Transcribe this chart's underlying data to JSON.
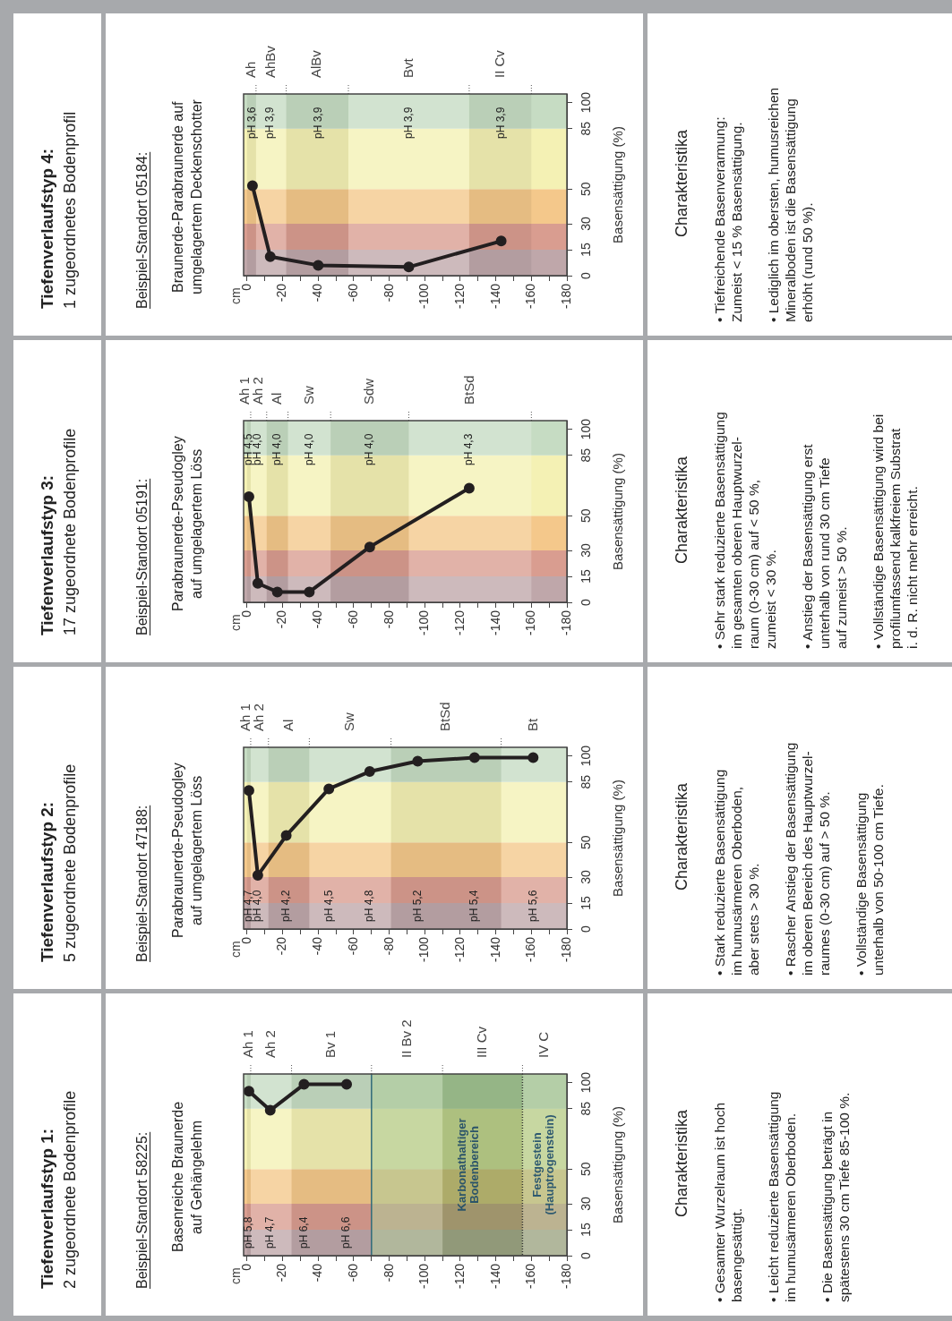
{
  "chart_data": [
    {
      "type": "line",
      "ylabel": "Basensättigung (%)",
      "series": [
        {
          "color": "#231f20",
          "x": [
            -1,
            -13,
            -32,
            -56
          ],
          "values": [
            95,
            84,
            99,
            99
          ]
        }
      ],
      "marker": "circle",
      "xlim": [
        2,
        -180
      ],
      "ylim": [
        0,
        105
      ],
      "yticks": [
        0,
        15,
        30,
        50,
        85,
        100
      ],
      "xticks": [
        0,
        {
          "value": -10,
          "label": null
        },
        -20,
        {
          "value": -30,
          "label": null
        },
        -40,
        {
          "value": -50,
          "label": null
        },
        -60,
        {
          "value": -70,
          "label": null
        },
        -80,
        {
          "value": -90,
          "label": null
        },
        -100,
        {
          "value": -110,
          "label": null
        },
        -120,
        {
          "value": -130,
          "label": null
        },
        -140,
        {
          "value": -150,
          "label": null
        },
        -160,
        {
          "value": -170,
          "label": null
        },
        -180
      ],
      "grid": false,
      "bands": [
        {
          "axis": "y",
          "from": 0,
          "to": 15,
          "color": "#bfa7aa"
        },
        {
          "axis": "y",
          "from": 15,
          "to": 30,
          "color": "#d99d90"
        },
        {
          "axis": "y",
          "from": 30,
          "to": 50,
          "color": "#f4c88b"
        },
        {
          "axis": "y",
          "from": 50,
          "to": 85,
          "color": "#f4f1b4"
        },
        {
          "axis": "y",
          "from": 85,
          "to": 105,
          "color": "#c6dcc3"
        },
        {
          "axis": "x",
          "from": -70,
          "to": -180,
          "label": "Karbonathaltiger\nBodenbereich",
          "color": "#6f9f4f"
        },
        {
          "axis": "x",
          "from": 0,
          "to": -2,
          "label": "Ah 1"
        },
        {
          "axis": "x",
          "from": -2,
          "to": -25,
          "label": "Ah 2"
        },
        {
          "axis": "x",
          "from": -25,
          "to": -70,
          "label": "Bv 1"
        },
        {
          "axis": "x",
          "from": -70,
          "to": -110,
          "label": "II Bv 2"
        },
        {
          "axis": "x",
          "from": -110,
          "to": -155,
          "label": "III Cv"
        },
        {
          "axis": "x",
          "from": -155,
          "to": -180,
          "label": "IV C"
        }
      ],
      "ref_lines": [
        {
          "axis": "x",
          "value": -70,
          "color": "#2f6a7a",
          "line_style": "solid"
        },
        {
          "axis": "x",
          "value": -155,
          "color": "#333333",
          "line_style": "dotted"
        }
      ],
      "annotations": [
        "Tiefenverlaufstyp 1:",
        "2 zugeordnete Bodenprofile",
        "Beispiel-Standort 58225:",
        "Basenreiche Braunerde\nauf Gehängelehm",
        "cm",
        "Charakteristika",
        "• Gesamter Wurzelraum ist hoch\nbasengesättigt.",
        "• Leicht reduzierte Basensättigung\nim humusärmeren Oberboden.",
        "• Die Basensättigung beträgt in\nspätestens 30 cm Tiefe 85-100 %.",
        "pH 5,8",
        "pH 4,7",
        "pH 6,4",
        "pH 6,6",
        {
          "text": "Festgestein\n(Hauptrogenstein)",
          "x": -155
        }
      ]
    },
    {
      "type": "line",
      "ylabel": "Basensättigung (%)",
      "series": [
        {
          "color": "#231f20",
          "x": [
            -1,
            -6,
            -22,
            -46,
            -69,
            -96,
            -128,
            -161
          ],
          "values": [
            80,
            31,
            54,
            81,
            91,
            97,
            99,
            99
          ]
        }
      ],
      "marker": "circle",
      "xlim": [
        2,
        -180
      ],
      "ylim": [
        0,
        105
      ],
      "yticks": [
        0,
        15,
        30,
        50,
        85,
        100
      ],
      "xticks": [
        0,
        {
          "value": -10,
          "label": null
        },
        -20,
        {
          "value": -30,
          "label": null
        },
        -40,
        {
          "value": -50,
          "label": null
        },
        -60,
        {
          "value": -70,
          "label": null
        },
        -80,
        {
          "value": -90,
          "label": null
        },
        -100,
        {
          "value": -110,
          "label": null
        },
        -120,
        {
          "value": -130,
          "label": null
        },
        -140,
        {
          "value": -150,
          "label": null
        },
        -160,
        {
          "value": -170,
          "label": null
        },
        -180
      ],
      "grid": false,
      "bands": [
        {
          "axis": "y",
          "from": 0,
          "to": 15,
          "color": "#bfa7aa"
        },
        {
          "axis": "y",
          "from": 15,
          "to": 30,
          "color": "#d99d90"
        },
        {
          "axis": "y",
          "from": 30,
          "to": 50,
          "color": "#f4c88b"
        },
        {
          "axis": "y",
          "from": 50,
          "to": 85,
          "color": "#f4f1b4"
        },
        {
          "axis": "y",
          "from": 85,
          "to": 105,
          "color": "#c6dcc3"
        },
        {
          "axis": "x",
          "from": 0,
          "to": -2,
          "label": "Ah 1"
        },
        {
          "axis": "x",
          "from": -2,
          "to": -12,
          "label": "Ah 2"
        },
        {
          "axis": "x",
          "from": -12,
          "to": -35,
          "label": "Al"
        },
        {
          "axis": "x",
          "from": -35,
          "to": -81,
          "label": "Sw"
        },
        {
          "axis": "x",
          "from": -81,
          "to": -143,
          "label": "BtSd"
        },
        {
          "axis": "x",
          "from": -143,
          "to": -180,
          "label": "Bt"
        }
      ],
      "annotations": [
        "Tiefenverlaufstyp 2:",
        "5 zugeordnete Bodenprofile",
        "Beispiel-Standort 47188:",
        "Parabraunerde-Pseudogley\nauf umgelagertem Löss",
        "cm",
        "Charakteristika",
        "• Stark reduzierte Basensättigung\nim humusärmeren Oberboden,\naber stets > 30 %.",
        "• Rascher Anstieg der Basensättigung\nim oberen Bereich des Hauptwurzel-\nraumes (0-30 cm) auf > 50 %.",
        "• Vollständige Basensättigung\nunterhalb von 50-100 cm Tiefe.",
        "pH 4,7",
        "pH 4,0",
        "pH 4,2",
        "pH 4,5",
        "pH 4,8",
        "pH 5,2",
        "pH 5,4",
        "pH 5,6"
      ]
    },
    {
      "type": "line",
      "ylabel": "Basensättigung (%)",
      "series": [
        {
          "color": "#231f20",
          "x": [
            -1,
            -6,
            -17,
            -35,
            -69,
            -125
          ],
          "values": [
            61,
            11,
            6,
            6,
            32,
            66
          ]
        }
      ],
      "marker": "circle",
      "xlim": [
        2,
        -180
      ],
      "ylim": [
        0,
        105
      ],
      "yticks": [
        0,
        15,
        30,
        50,
        85,
        100
      ],
      "xticks": [
        0,
        {
          "value": -10,
          "label": null
        },
        -20,
        {
          "value": -30,
          "label": null
        },
        -40,
        {
          "value": -50,
          "label": null
        },
        -60,
        {
          "value": -70,
          "label": null
        },
        -80,
        {
          "value": -90,
          "label": null
        },
        -100,
        {
          "value": -110,
          "label": null
        },
        -120,
        {
          "value": -130,
          "label": null
        },
        -140,
        {
          "value": -150,
          "label": null
        },
        -160,
        {
          "value": -170,
          "label": null
        },
        -180
      ],
      "grid": false,
      "bands": [
        {
          "axis": "y",
          "from": 0,
          "to": 15,
          "color": "#bfa7aa"
        },
        {
          "axis": "y",
          "from": 15,
          "to": 30,
          "color": "#d99d90"
        },
        {
          "axis": "y",
          "from": 30,
          "to": 50,
          "color": "#f4c88b"
        },
        {
          "axis": "y",
          "from": 50,
          "to": 85,
          "color": "#f4f1b4"
        },
        {
          "axis": "y",
          "from": 85,
          "to": 105,
          "color": "#c6dcc3"
        },
        {
          "axis": "x",
          "from": 0,
          "to": -2,
          "label": "Ah 1"
        },
        {
          "axis": "x",
          "from": -2,
          "to": -11,
          "label": "Ah 2"
        },
        {
          "axis": "x",
          "from": -11,
          "to": -23,
          "label": "Al"
        },
        {
          "axis": "x",
          "from": -23,
          "to": -47,
          "label": "Sw"
        },
        {
          "axis": "x",
          "from": -47,
          "to": -91,
          "label": "Sdw"
        },
        {
          "axis": "x",
          "from": -91,
          "to": -160,
          "label": "BtSd"
        }
      ],
      "annotations": [
        "Tiefenverlaufstyp 3:",
        "17 zugeordnete Bodenprofile",
        "Beispiel-Standort 05191:",
        "Parabraunerde-Pseudogley\nauf umgelagertem Löss",
        "cm",
        "Charakteristika",
        "• Sehr stark reduzierte Basensättigung\nim gesamten oberen Hauptwurzel-\nraum (0-30 cm) auf < 50 %,\nzumeist < 30 %.",
        "• Anstieg der Basensättigung erst\nunterhalb von rund 30 cm Tiefe\nauf zumeist > 50 %.",
        "• Vollständige Basensättigung wird bei\nprofilumfassend kalkfreiem Substrat\ni. d. R. nicht mehr erreicht.",
        "pH 4,5",
        "pH 4,0",
        "pH 4,0",
        "pH 4,0",
        "pH 4,0",
        "pH 4,3"
      ]
    },
    {
      "type": "line",
      "ylabel": "Basensättigung (%)",
      "series": [
        {
          "color": "#231f20",
          "x": [
            -3,
            -13,
            -40,
            -91,
            -143
          ],
          "values": [
            52,
            11,
            6,
            5,
            20
          ]
        }
      ],
      "marker": "circle",
      "xlim": [
        2,
        -180
      ],
      "ylim": [
        0,
        105
      ],
      "yticks": [
        0,
        15,
        30,
        50,
        85,
        100
      ],
      "xticks": [
        0,
        {
          "value": -10,
          "label": null
        },
        -20,
        {
          "value": -30,
          "label": null
        },
        -40,
        {
          "value": -50,
          "label": null
        },
        -60,
        {
          "value": -70,
          "label": null
        },
        -80,
        {
          "value": -90,
          "label": null
        },
        -100,
        {
          "value": -110,
          "label": null
        },
        -120,
        {
          "value": -130,
          "label": null
        },
        -140,
        {
          "value": -150,
          "label": null
        },
        -160,
        {
          "value": -170,
          "label": null
        },
        -180
      ],
      "grid": false,
      "bands": [
        {
          "axis": "y",
          "from": 0,
          "to": 15,
          "color": "#bfa7aa"
        },
        {
          "axis": "y",
          "from": 15,
          "to": 30,
          "color": "#d99d90"
        },
        {
          "axis": "y",
          "from": 30,
          "to": 50,
          "color": "#f4c88b"
        },
        {
          "axis": "y",
          "from": 50,
          "to": 85,
          "color": "#f4f1b4"
        },
        {
          "axis": "y",
          "from": 85,
          "to": 105,
          "color": "#c6dcc3"
        },
        {
          "axis": "x",
          "from": 0,
          "to": -5,
          "label": "Ah"
        },
        {
          "axis": "x",
          "from": -5,
          "to": -22,
          "label": "AhBv"
        },
        {
          "axis": "x",
          "from": -22,
          "to": -57,
          "label": "AlBv"
        },
        {
          "axis": "x",
          "from": -57,
          "to": -125,
          "label": "Bvt"
        },
        {
          "axis": "x",
          "from": -125,
          "to": -160,
          "label": "II Cv"
        }
      ],
      "annotations": [
        "Tiefenverlaufstyp 4:",
        "1 zugeordnetes Bodenprofil",
        "Beispiel-Standort 05184:",
        "Braunerde-Parabraunerde auf\numgelagertem Deckenschotter",
        "cm",
        "Charakteristika",
        "• Tiefreichende Basenverarmung:\nZumeist < 15 % Basensättigung.",
        "• Lediglich im obersten, humusreichen\nMineralboden ist die Basensättigung\nerhöht (rund 50 %).",
        "pH 3,6",
        "pH 3,9",
        "pH 3,9",
        "pH 3,9",
        "pH 3,9"
      ]
    }
  ]
}
